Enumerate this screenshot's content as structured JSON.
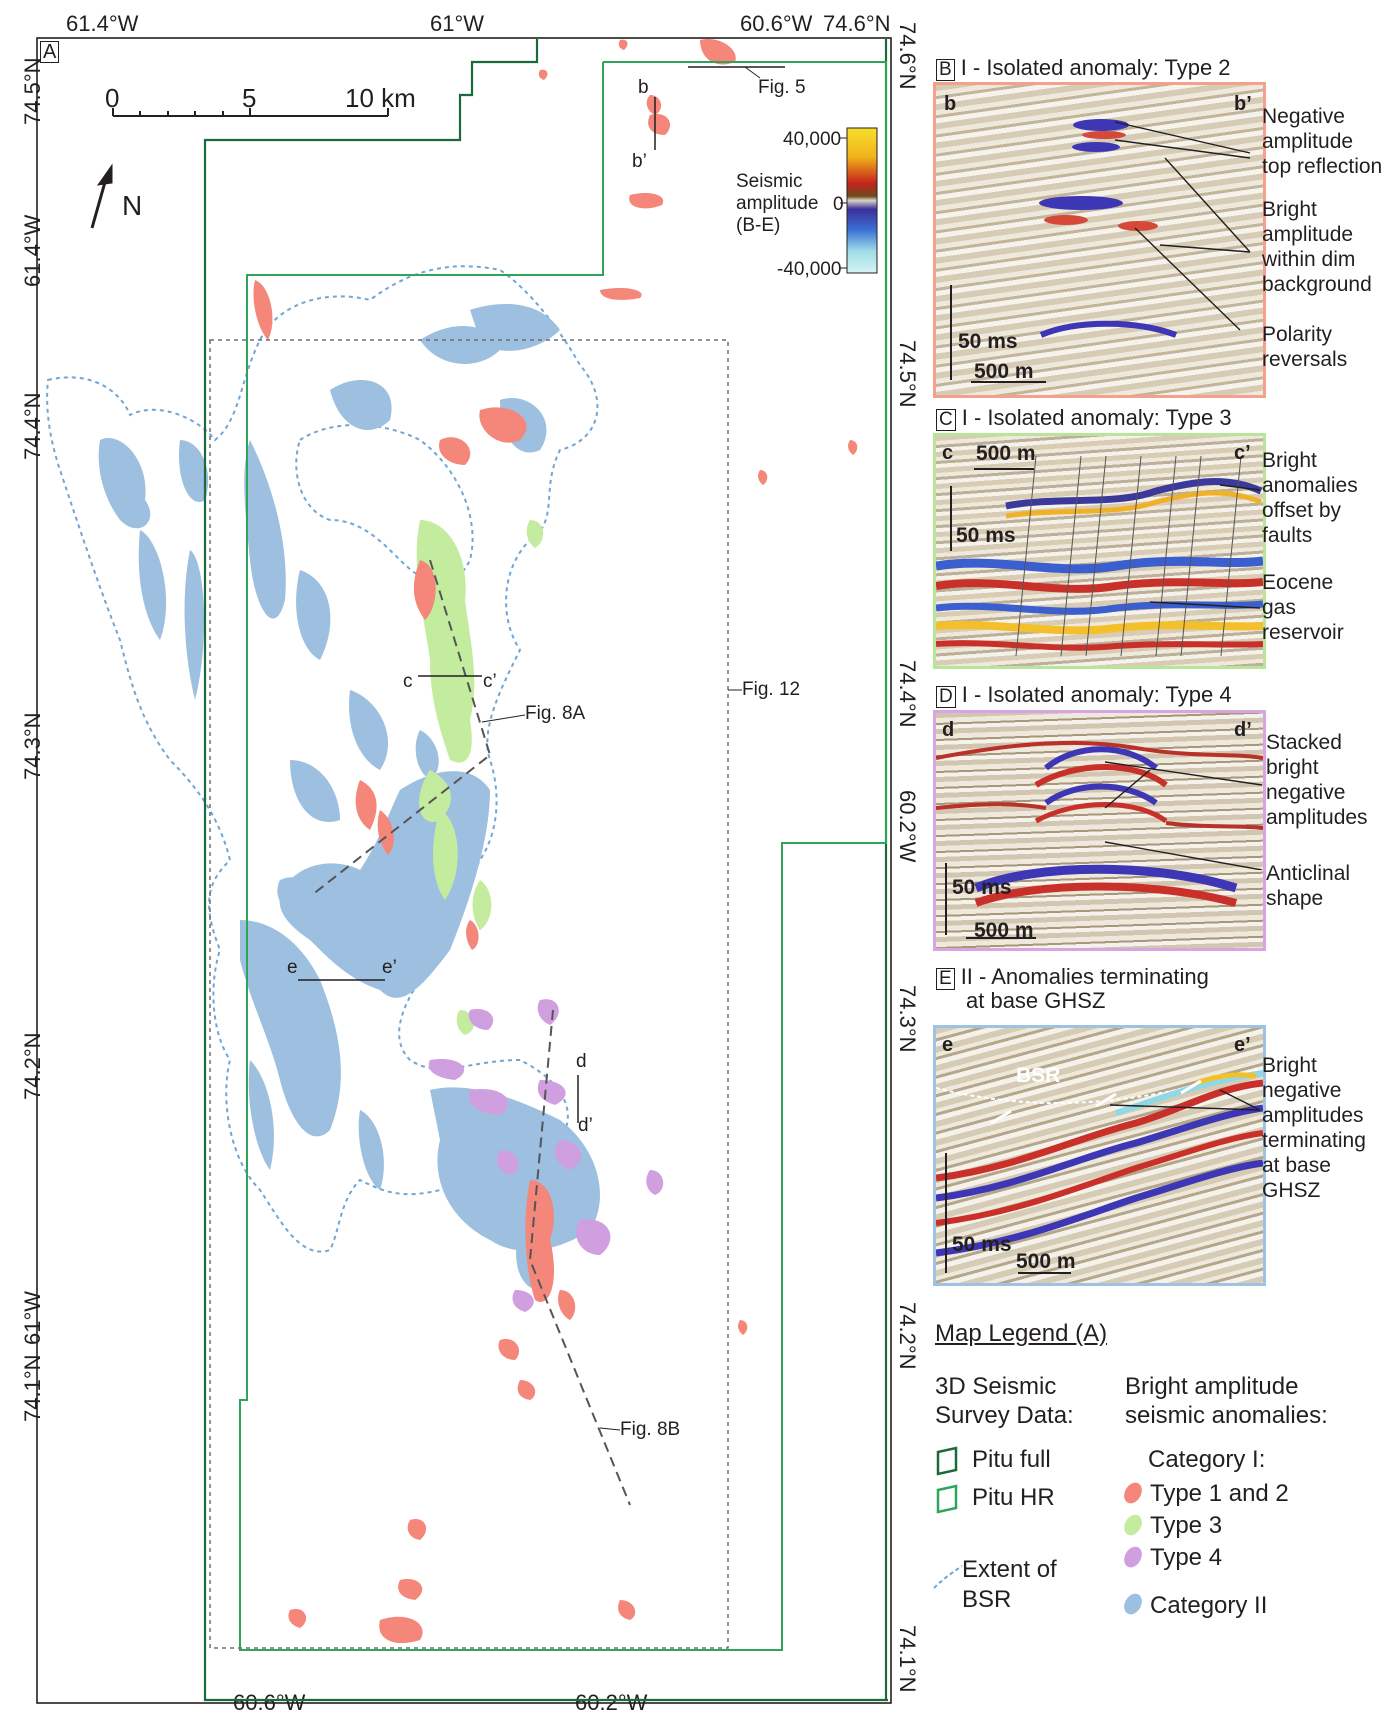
{
  "map": {
    "panel_letter": "A",
    "top_labels": [
      "61.4°W",
      "61°W",
      "60.6°W",
      "74.6°N"
    ],
    "bottom_labels": [
      "60.6°W",
      "60.2°W"
    ],
    "left_labels": [
      "74.5°N",
      "61.4°W",
      "74.4°N",
      "74.3°N",
      "74.2°N",
      "61°W",
      "74.1°N"
    ],
    "right_labels": [
      "74.6°N",
      "74.5°N",
      "74.4°N",
      "60.2°W",
      "74.3°N",
      "74.2°N",
      "74.1°N"
    ],
    "scale": {
      "ticks": [
        "0",
        "5",
        "10 km"
      ]
    },
    "north": "N",
    "profile_labels": {
      "b": "b",
      "b_prime": "b’",
      "c": "c",
      "c_prime": "c’",
      "d": "d",
      "d_prime": "d’",
      "e": "e",
      "e_prime": "e’"
    },
    "figure_refs": {
      "fig5": "Fig. 5",
      "fig8a": "Fig. 8A",
      "fig8b": "Fig. 8B",
      "fig12": "Fig. 12"
    },
    "colorbar": {
      "title_lines": [
        "Seismic",
        "amplitude",
        "(B-E)"
      ],
      "max": "40,000",
      "mid": "0",
      "min": "-40,000"
    },
    "colors": {
      "type12": "#f4867a",
      "type3": "#c4ec9f",
      "type4": "#d09fe0",
      "category2": "#9dbfe0",
      "bsr_line": "#6fa6d6",
      "pitu_full": "#1b6b3a",
      "pitu_hr": "#2ea55a"
    }
  },
  "panels": {
    "B": {
      "letter": "B",
      "title": "I - Isolated anomaly: Type 2",
      "left_label": "b",
      "right_label": "b’",
      "scale_ms": "50 ms",
      "scale_m": "500 m",
      "annotations": [
        "Negative\namplitude\ntop reflection",
        "Bright\namplitude\nwithin dim\nbackground",
        "Polarity\nreversals"
      ]
    },
    "C": {
      "letter": "C",
      "title": "I - Isolated anomaly: Type 3",
      "left_label": "c",
      "right_label": "c’",
      "scale_ms": "50 ms",
      "scale_m": "500 m",
      "annotations": [
        "Bright\nanomalies\noffset by\nfaults",
        "Eocene\ngas\nreservoir"
      ]
    },
    "D": {
      "letter": "D",
      "title": "I - Isolated anomaly: Type 4",
      "left_label": "d",
      "right_label": "d’",
      "scale_ms": "50 ms",
      "scale_m": "500 m",
      "annotations": [
        "Stacked\nbright\nnegative\namplitudes",
        "Anticlinal\nshape"
      ]
    },
    "E": {
      "letter": "E",
      "title_line1": "II - Anomalies terminating",
      "title_line2": "at base GHSZ",
      "left_label": "e",
      "right_label": "e’",
      "bsr_label": "BSR",
      "scale_ms": "50 ms",
      "scale_m": "500 m",
      "annotations": [
        "Bright\nnegative\namplitudes\nterminating\nat base\nGHSZ"
      ]
    }
  },
  "legend": {
    "title": "Map Legend (A)",
    "survey_heading_lines": [
      "3D Seismic",
      "Survey Data:"
    ],
    "survey_items": [
      "Pitu full",
      "Pitu HR"
    ],
    "bsr_item_lines": [
      "Extent of",
      "BSR"
    ],
    "anomaly_heading_lines": [
      "Bright amplitude",
      "seismic anomalies:"
    ],
    "category1": "Category I:",
    "category1_items": [
      "Type 1 and 2",
      "Type 3",
      "Type 4"
    ],
    "category2": "Category II"
  }
}
